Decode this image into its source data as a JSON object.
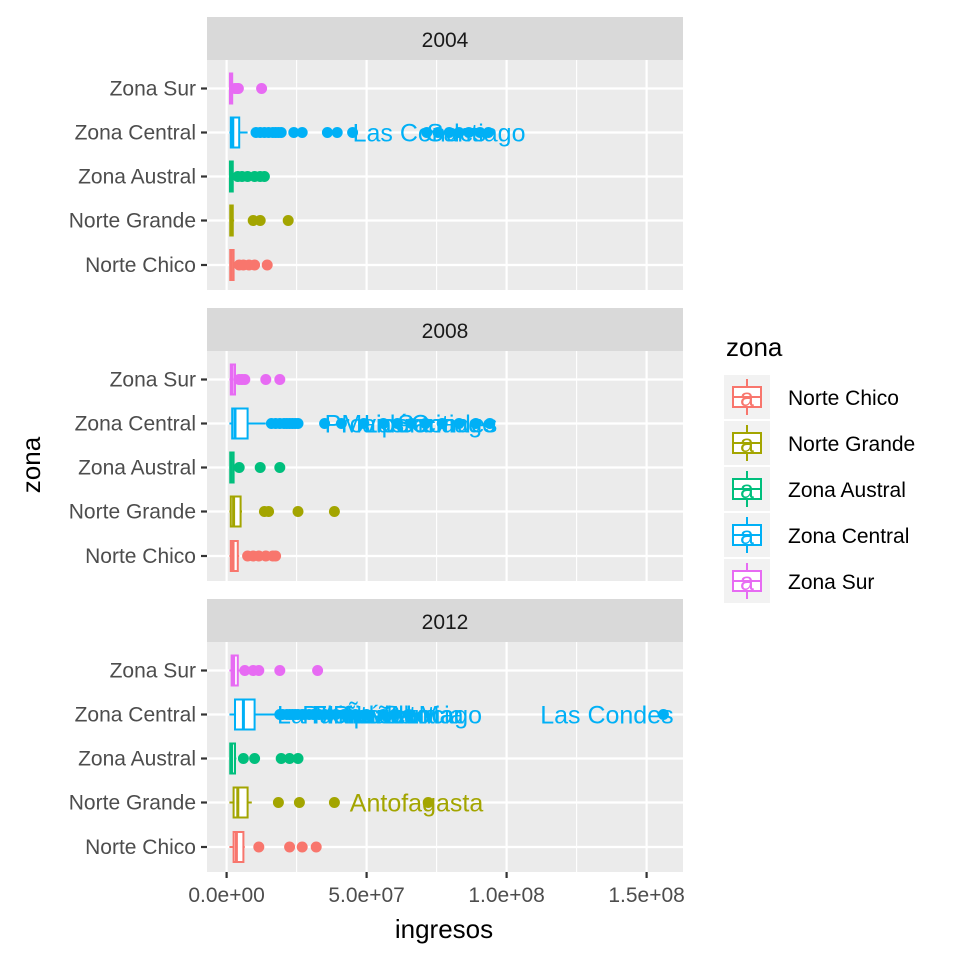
{
  "chart_data": {
    "type": "boxplot",
    "orientation": "horizontal",
    "facet_variable": "year",
    "xlabel": "ingresos",
    "ylabel": "zona",
    "xlim": [
      -7000000,
      163000000
    ],
    "x_ticks": [
      0,
      50000000,
      100000000,
      150000000
    ],
    "x_tick_labels": [
      "0.0e+00",
      "5.0e+07",
      "1.0e+08",
      "1.5e+08"
    ],
    "categories": [
      "Norte Chico",
      "Norte Grande",
      "Zona Austral",
      "Zona Central",
      "Zona Sur"
    ],
    "colors": {
      "Norte Chico": "#F8766D",
      "Norte Grande": "#A3A500",
      "Zona Austral": "#00BF7D",
      "Zona Central": "#00B0F6",
      "Zona Sur": "#E76BF3"
    },
    "legend": {
      "title": "zona",
      "position": "right",
      "entries": [
        "Norte Chico",
        "Norte Grande",
        "Zona Austral",
        "Zona Central",
        "Zona Sur"
      ]
    },
    "grid": true,
    "facets": [
      {
        "label": "2004",
        "series": [
          {
            "zona": "Zona Sur",
            "min": 1000000,
            "q1": 1200000,
            "median": 1500000,
            "q3": 2000000,
            "max": 2500000,
            "outliers": [
              3000000,
              3800000,
              4200000,
              12500000
            ]
          },
          {
            "zona": "Zona Central",
            "min": 1000000,
            "q1": 1500000,
            "median": 2200000,
            "q3": 4500000,
            "max": 7500000,
            "outliers": [
              10500000,
              12000000,
              13500000,
              15000000,
              16500000,
              17500000,
              18500000,
              19500000,
              24000000,
              27000000,
              36000000,
              39500000,
              45000000,
              71500000,
              75500000,
              79500000,
              83000000,
              86500000,
              90500000,
              93500000
            ]
          },
          {
            "zona": "Zona Austral",
            "min": 1000000,
            "q1": 1200000,
            "median": 1600000,
            "q3": 2200000,
            "max": 2800000,
            "outliers": [
              4000000,
              5500000,
              7500000,
              10000000,
              12000000,
              13500000
            ]
          },
          {
            "zona": "Norte Grande",
            "min": 1000000,
            "q1": 1300000,
            "median": 1700000,
            "q3": 2200000,
            "max": 2700000,
            "outliers": [
              9500000,
              12000000,
              22000000
            ]
          },
          {
            "zona": "Norte Chico",
            "min": 1000000,
            "q1": 1300000,
            "median": 1700000,
            "q3": 2500000,
            "max": 3000000,
            "outliers": [
              4500000,
              6000000,
              8000000,
              10000000,
              14500000
            ]
          }
        ],
        "labels": [
          {
            "zona": "Zona Central",
            "x": 45000000,
            "text": "Las Condes"
          },
          {
            "zona": "Zona Central",
            "x": 71500000,
            "text": "Santiago"
          }
        ]
      },
      {
        "label": "2008",
        "series": [
          {
            "zona": "Zona Sur",
            "min": 1000000,
            "q1": 1500000,
            "median": 2000000,
            "q3": 3000000,
            "max": 4000000,
            "outliers": [
              4500000,
              5500000,
              6500000,
              14000000,
              19000000
            ]
          },
          {
            "zona": "Zona Central",
            "min": 1000000,
            "q1": 2000000,
            "median": 3000000,
            "q3": 7500000,
            "max": 14000000,
            "outliers": [
              16000000,
              17500000,
              19000000,
              20500000,
              21500000,
              22500000,
              23500000,
              24500000,
              25500000,
              35000000,
              41000000,
              49000000,
              56000000,
              61000000,
              66000000,
              71000000,
              77000000,
              83000000,
              89000000,
              94000000
            ]
          },
          {
            "zona": "Zona Austral",
            "min": 1000000,
            "q1": 1300000,
            "median": 1700000,
            "q3": 2500000,
            "max": 3000000,
            "outliers": [
              4500000,
              12000000,
              19000000
            ]
          },
          {
            "zona": "Norte Grande",
            "min": 1000000,
            "q1": 1500000,
            "median": 2500000,
            "q3": 5000000,
            "max": 5500000,
            "outliers": [
              13500000,
              15000000,
              25500000,
              38500000
            ]
          },
          {
            "zona": "Norte Chico",
            "min": 1000000,
            "q1": 1500000,
            "median": 2300000,
            "q3": 4000000,
            "max": 4500000,
            "outliers": [
              7500000,
              9500000,
              11500000,
              14000000,
              16500000,
              17500000
            ]
          }
        ],
        "labels": [
          {
            "zona": "Zona Central",
            "x": 35000000,
            "text": "Providencia"
          },
          {
            "zona": "Zona Central",
            "x": 41000000,
            "text": "Maipú"
          },
          {
            "zona": "Zona Central",
            "x": 49000000,
            "text": "Las Condes"
          },
          {
            "zona": "Zona Central",
            "x": 61000000,
            "text": "Santiago"
          }
        ]
      },
      {
        "label": "2012",
        "series": [
          {
            "zona": "Zona Sur",
            "min": 1000000,
            "q1": 1800000,
            "median": 2500000,
            "q3": 4000000,
            "max": 5000000,
            "outliers": [
              6500000,
              9500000,
              11500000,
              19000000,
              32500000
            ]
          },
          {
            "zona": "Zona Central",
            "min": 1000000,
            "q1": 3000000,
            "median": 6000000,
            "q3": 10000000,
            "max": 18000000,
            "outliers": [
              19000000,
              20000000,
              21500000,
              22500000,
              23500000,
              24500000,
              25500000,
              27000000,
              28000000,
              29500000,
              31000000,
              33000000,
              35000000,
              37000000,
              39000000,
              42000000,
              44000000,
              46000000,
              50000000,
              56000000,
              60000000,
              65000000,
              156000000
            ]
          },
          {
            "zona": "Zona Austral",
            "min": 1000000,
            "q1": 1300000,
            "median": 1800000,
            "q3": 3000000,
            "max": 3500000,
            "outliers": [
              6000000,
              10000000,
              19500000,
              22500000,
              25500000
            ]
          },
          {
            "zona": "Norte Grande",
            "min": 1000000,
            "q1": 2500000,
            "median": 4000000,
            "q3": 7500000,
            "max": 9000000,
            "outliers": [
              18500000,
              26000000,
              38500000,
              72000000
            ]
          },
          {
            "zona": "Norte Chico",
            "min": 1000000,
            "q1": 2500000,
            "median": 3500000,
            "q3": 6000000,
            "max": 6500000,
            "outliers": [
              11500000,
              22500000,
              27000000,
              32000000
            ]
          }
        ],
        "labels": [
          {
            "zona": "Zona Central",
            "x": 18000000,
            "text": "La Florida"
          },
          {
            "zona": "Zona Central",
            "x": 27000000,
            "text": "Puente Alto"
          },
          {
            "zona": "Zona Central",
            "x": 31000000,
            "text": "Maipú"
          },
          {
            "zona": "Zona Central",
            "x": 34000000,
            "text": "Viña del Mar"
          },
          {
            "zona": "Zona Central",
            "x": 38000000,
            "text": "Providencia"
          },
          {
            "zona": "Zona Central",
            "x": 42000000,
            "text": "Ñuñoa"
          },
          {
            "zona": "Zona Central",
            "x": 56000000,
            "text": "Santiago"
          },
          {
            "zona": "Zona Central",
            "x": 112000000,
            "text": "Las Condes"
          },
          {
            "zona": "Norte Grande",
            "x": 44000000,
            "text": "Antofagasta"
          }
        ]
      }
    ]
  }
}
